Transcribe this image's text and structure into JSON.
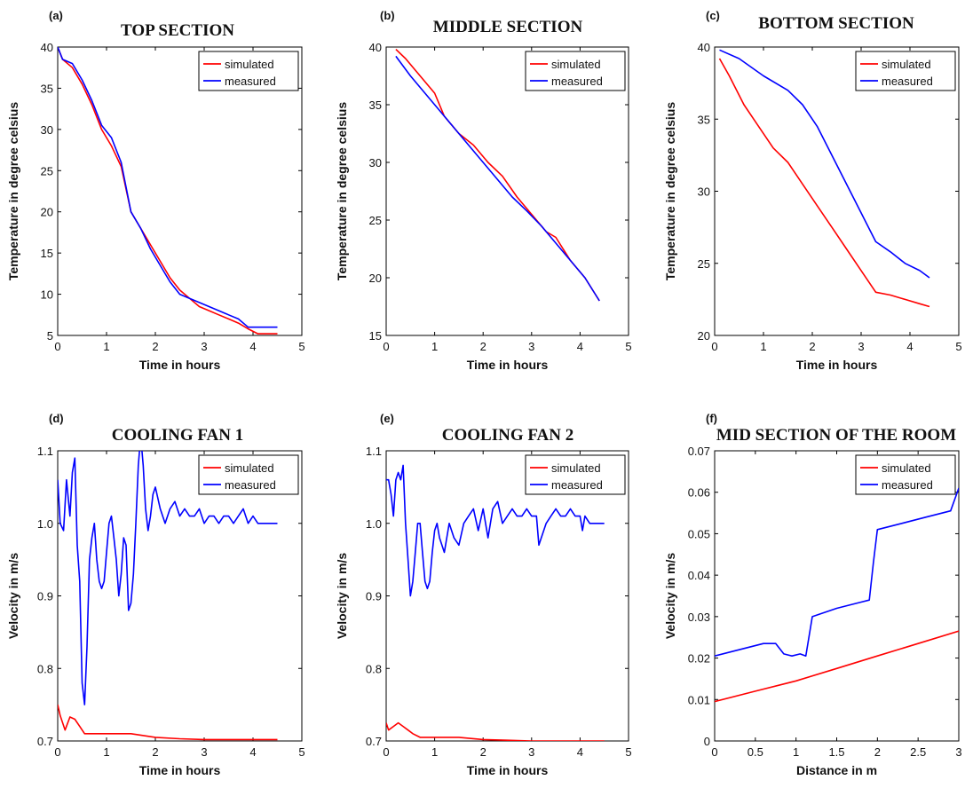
{
  "chart_data": [
    {
      "type": "line",
      "panel_label": "(a)",
      "title": "TOP SECTION",
      "xlabel": "Time in hours",
      "ylabel": "Temperature in degree celsius",
      "xlim": [
        0,
        5
      ],
      "ylim": [
        5,
        40
      ],
      "xticks": [
        "0",
        "1",
        "2",
        "3",
        "4",
        "5"
      ],
      "yticks": [
        "5",
        "10",
        "15",
        "20",
        "25",
        "30",
        "35",
        "40"
      ],
      "legend_position": "top-right",
      "series": [
        {
          "name": "simulated",
          "color": "#ff0000",
          "x": [
            0,
            0.1,
            0.3,
            0.5,
            0.7,
            0.9,
            1.1,
            1.3,
            1.5,
            1.7,
            1.9,
            2.1,
            2.3,
            2.5,
            2.7,
            2.9,
            3.1,
            3.3,
            3.5,
            3.7,
            3.9,
            4.1,
            4.5
          ],
          "y": [
            40,
            38.5,
            37.5,
            35.5,
            33,
            30,
            28,
            25.5,
            20,
            18,
            16,
            14,
            12,
            10.5,
            9.5,
            8.5,
            8,
            7.5,
            7,
            6.5,
            5.8,
            5.2,
            5.2
          ]
        },
        {
          "name": "measured",
          "color": "#0000ff",
          "x": [
            0,
            0.1,
            0.3,
            0.5,
            0.7,
            0.9,
            1.1,
            1.3,
            1.5,
            1.7,
            1.9,
            2.1,
            2.3,
            2.5,
            2.7,
            2.9,
            3.1,
            3.3,
            3.5,
            3.7,
            3.9,
            4.1,
            4.5
          ],
          "y": [
            40,
            38.5,
            38,
            36,
            33.5,
            30.5,
            29,
            26,
            20,
            18,
            15.5,
            13.5,
            11.5,
            10,
            9.5,
            9,
            8.5,
            8,
            7.5,
            7,
            6,
            6,
            6
          ]
        }
      ]
    },
    {
      "type": "line",
      "panel_label": "(b)",
      "title": "MIDDLE SECTION",
      "xlabel": "Time in hours",
      "ylabel": "Temperature in degree celsius",
      "xlim": [
        0,
        5
      ],
      "ylim": [
        15,
        40
      ],
      "xticks": [
        "0",
        "1",
        "2",
        "3",
        "4",
        "5"
      ],
      "yticks": [
        "15",
        "20",
        "25",
        "30",
        "35",
        "40"
      ],
      "legend_position": "top-right",
      "series": [
        {
          "name": "simulated",
          "color": "#ff0000",
          "x": [
            0.2,
            0.4,
            0.7,
            1.0,
            1.2,
            1.5,
            1.8,
            2.1,
            2.4,
            2.7,
            3.0,
            3.3,
            3.5,
            3.8,
            4.1,
            4.4
          ],
          "y": [
            39.8,
            39,
            37.5,
            36,
            34,
            32.5,
            31.5,
            30,
            28.8,
            27,
            25.5,
            24,
            23.5,
            21.5,
            20,
            18
          ]
        },
        {
          "name": "measured",
          "color": "#0000ff",
          "x": [
            0.2,
            0.5,
            0.8,
            1.1,
            1.4,
            1.7,
            2.0,
            2.3,
            2.6,
            2.9,
            3.2,
            3.5,
            3.8,
            4.1,
            4.4
          ],
          "y": [
            39.2,
            37.5,
            36,
            34.5,
            33,
            31.5,
            30,
            28.5,
            27,
            25.8,
            24.5,
            23,
            21.5,
            20,
            18
          ]
        }
      ]
    },
    {
      "type": "line",
      "panel_label": "(c)",
      "title": "BOTTOM SECTION",
      "xlabel": "Time in hours",
      "ylabel": "Temperature in degree celsius",
      "xlim": [
        0,
        5
      ],
      "ylim": [
        20,
        40
      ],
      "xticks": [
        "0",
        "1",
        "2",
        "3",
        "4",
        "5"
      ],
      "yticks": [
        "20",
        "25",
        "30",
        "35",
        "40"
      ],
      "legend_position": "top-right",
      "series": [
        {
          "name": "simulated",
          "color": "#ff0000",
          "x": [
            0.1,
            0.3,
            0.6,
            0.9,
            1.2,
            1.5,
            1.8,
            2.1,
            2.4,
            2.7,
            3.0,
            3.3,
            3.6,
            3.9,
            4.2,
            4.4
          ],
          "y": [
            39.2,
            38,
            36,
            34.5,
            33,
            32,
            30.5,
            29,
            27.5,
            26,
            24.5,
            23,
            22.8,
            22.5,
            22.2,
            22
          ]
        },
        {
          "name": "measured",
          "color": "#0000ff",
          "x": [
            0.1,
            0.5,
            1.0,
            1.5,
            1.8,
            2.1,
            2.4,
            2.7,
            3.0,
            3.3,
            3.6,
            3.9,
            4.2,
            4.4
          ],
          "y": [
            39.8,
            39.2,
            38,
            37,
            36,
            34.5,
            32.5,
            30.5,
            28.5,
            26.5,
            25.8,
            25,
            24.5,
            24
          ]
        }
      ]
    },
    {
      "type": "line",
      "panel_label": "(d)",
      "title": "COOLING FAN 1",
      "xlabel": "Time in hours",
      "ylabel": "Velocity in m/s",
      "xlim": [
        0,
        5
      ],
      "ylim": [
        0.7,
        1.1
      ],
      "xticks": [
        "0",
        "1",
        "2",
        "3",
        "4",
        "5"
      ],
      "yticks": [
        "0.7",
        "0.8",
        "0.9",
        "1.0",
        "1.1"
      ],
      "legend_position": "top-right",
      "series": [
        {
          "name": "simulated",
          "color": "#ff0000",
          "x": [
            0,
            0.05,
            0.15,
            0.25,
            0.35,
            0.45,
            0.55,
            0.7,
            1.0,
            1.5,
            2.0,
            2.5,
            3.0,
            4.0,
            4.5
          ],
          "y": [
            0.75,
            0.735,
            0.715,
            0.733,
            0.73,
            0.72,
            0.71,
            0.71,
            0.71,
            0.71,
            0.705,
            0.703,
            0.702,
            0.702,
            0.702
          ]
        },
        {
          "name": "measured",
          "color": "#0000ff",
          "x": [
            0,
            0.05,
            0.12,
            0.18,
            0.25,
            0.3,
            0.35,
            0.4,
            0.45,
            0.5,
            0.55,
            0.6,
            0.65,
            0.7,
            0.75,
            0.8,
            0.85,
            0.9,
            0.95,
            1.0,
            1.05,
            1.1,
            1.15,
            1.2,
            1.25,
            1.3,
            1.35,
            1.4,
            1.45,
            1.5,
            1.55,
            1.6,
            1.65,
            1.7,
            1.75,
            1.8,
            1.85,
            1.9,
            1.95,
            2.0,
            2.1,
            2.2,
            2.3,
            2.4,
            2.5,
            2.6,
            2.7,
            2.8,
            2.9,
            3.0,
            3.1,
            3.2,
            3.3,
            3.4,
            3.5,
            3.6,
            3.7,
            3.8,
            3.9,
            4.0,
            4.1,
            4.2,
            4.3,
            4.4,
            4.5
          ],
          "y": [
            1.06,
            1.0,
            0.99,
            1.06,
            1.01,
            1.07,
            1.09,
            0.97,
            0.92,
            0.78,
            0.75,
            0.83,
            0.95,
            0.98,
            1.0,
            0.95,
            0.92,
            0.91,
            0.92,
            0.96,
            1.0,
            1.01,
            0.98,
            0.95,
            0.9,
            0.93,
            0.98,
            0.97,
            0.88,
            0.89,
            0.93,
            1.0,
            1.08,
            1.12,
            1.08,
            1.02,
            0.99,
            1.01,
            1.04,
            1.05,
            1.02,
            1.0,
            1.02,
            1.03,
            1.01,
            1.02,
            1.01,
            1.01,
            1.02,
            1.0,
            1.01,
            1.01,
            1.0,
            1.01,
            1.01,
            1.0,
            1.01,
            1.02,
            1.0,
            1.01,
            1.0,
            1.0,
            1.0,
            1.0,
            1.0
          ]
        }
      ]
    },
    {
      "type": "line",
      "panel_label": "(e)",
      "title": "COOLING FAN 2",
      "xlabel": "Time in hours",
      "ylabel": "Velocity in m/s",
      "xlim": [
        0,
        5
      ],
      "ylim": [
        0.7,
        1.1
      ],
      "xticks": [
        "0",
        "1",
        "2",
        "3",
        "4",
        "5"
      ],
      "yticks": [
        "0.7",
        "0.8",
        "0.9",
        "1.0",
        "1.1"
      ],
      "legend_position": "top-right",
      "series": [
        {
          "name": "simulated",
          "color": "#ff0000",
          "x": [
            0,
            0.05,
            0.15,
            0.25,
            0.35,
            0.45,
            0.55,
            0.7,
            1.0,
            1.5,
            2.0,
            2.5,
            3.0,
            4.0,
            4.5
          ],
          "y": [
            0.725,
            0.715,
            0.72,
            0.725,
            0.72,
            0.715,
            0.71,
            0.705,
            0.705,
            0.705,
            0.702,
            0.701,
            0.7,
            0.7,
            0.7
          ]
        },
        {
          "name": "measured",
          "color": "#0000ff",
          "x": [
            0,
            0.05,
            0.1,
            0.15,
            0.2,
            0.25,
            0.3,
            0.35,
            0.4,
            0.45,
            0.5,
            0.55,
            0.6,
            0.65,
            0.7,
            0.75,
            0.8,
            0.85,
            0.9,
            0.95,
            1.0,
            1.05,
            1.1,
            1.2,
            1.3,
            1.4,
            1.5,
            1.6,
            1.7,
            1.8,
            1.9,
            2.0,
            2.1,
            2.2,
            2.3,
            2.4,
            2.5,
            2.6,
            2.7,
            2.8,
            2.9,
            3.0,
            3.1,
            3.15,
            3.2,
            3.3,
            3.4,
            3.5,
            3.6,
            3.7,
            3.8,
            3.9,
            4.0,
            4.05,
            4.1,
            4.2,
            4.3,
            4.4,
            4.5
          ],
          "y": [
            1.06,
            1.06,
            1.04,
            1.01,
            1.06,
            1.07,
            1.06,
            1.08,
            1.0,
            0.95,
            0.9,
            0.92,
            0.96,
            1.0,
            1.0,
            0.96,
            0.92,
            0.91,
            0.92,
            0.96,
            0.99,
            1.0,
            0.98,
            0.96,
            1.0,
            0.98,
            0.97,
            1.0,
            1.01,
            1.02,
            0.99,
            1.02,
            0.98,
            1.02,
            1.03,
            1.0,
            1.01,
            1.02,
            1.01,
            1.01,
            1.02,
            1.01,
            1.01,
            0.97,
            0.98,
            1.0,
            1.01,
            1.02,
            1.01,
            1.01,
            1.02,
            1.01,
            1.01,
            0.99,
            1.01,
            1.0,
            1.0,
            1.0,
            1.0
          ]
        }
      ]
    },
    {
      "type": "line",
      "panel_label": "(f)",
      "title": "MID SECTION OF THE ROOM",
      "xlabel": "Distance in m",
      "ylabel": "Velocity in m/s",
      "xlim": [
        0,
        3
      ],
      "ylim": [
        0,
        0.07
      ],
      "xticks": [
        "0",
        "0.5",
        "1",
        "1.5",
        "2",
        "2.5",
        "3"
      ],
      "yticks": [
        "0",
        "0.01",
        "0.02",
        "0.03",
        "0.04",
        "0.05",
        "0.06",
        "0.07"
      ],
      "legend_position": "top-right",
      "series": [
        {
          "name": "simulated",
          "color": "#ff0000",
          "x": [
            0,
            0.5,
            1.0,
            1.5,
            2.0,
            2.5,
            3.0
          ],
          "y": [
            0.0095,
            0.012,
            0.0145,
            0.0175,
            0.0205,
            0.0235,
            0.0265
          ]
        },
        {
          "name": "measured",
          "color": "#0000ff",
          "x": [
            0,
            0.3,
            0.6,
            0.75,
            0.85,
            0.95,
            1.05,
            1.12,
            1.2,
            1.5,
            1.8,
            1.9,
            1.95,
            2.0,
            2.3,
            2.6,
            2.9,
            3.0
          ],
          "y": [
            0.0205,
            0.022,
            0.0235,
            0.0235,
            0.021,
            0.0205,
            0.021,
            0.0205,
            0.03,
            0.032,
            0.0335,
            0.034,
            0.043,
            0.051,
            0.0525,
            0.054,
            0.0555,
            0.061
          ]
        }
      ]
    }
  ]
}
